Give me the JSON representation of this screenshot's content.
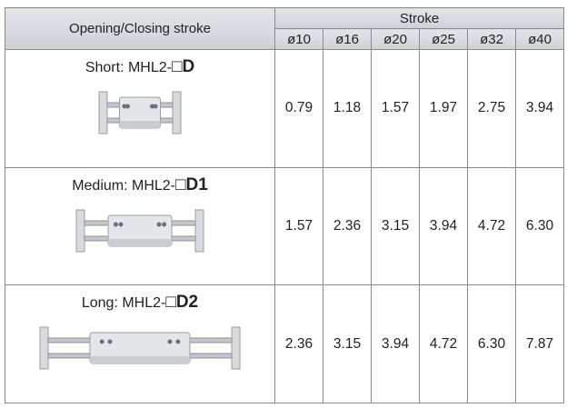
{
  "table": {
    "header": {
      "first": "Opening/Closing stroke",
      "group": "Stroke",
      "columns": [
        "ø10",
        "ø16",
        "ø20",
        "ø25",
        "ø32",
        "ø40"
      ]
    },
    "rows": [
      {
        "label": "Short: MHL2-",
        "model": "□D",
        "values": [
          "0.79",
          "1.18",
          "1.57",
          "1.97",
          "2.75",
          "3.94"
        ]
      },
      {
        "label": "Medium: MHL2-",
        "model": "□D1",
        "values": [
          "1.57",
          "2.36",
          "3.15",
          "3.94",
          "4.72",
          "6.30"
        ]
      },
      {
        "label": "Long: MHL2-",
        "model": "□D2",
        "values": [
          "2.36",
          "3.15",
          "3.94",
          "4.72",
          "6.30",
          "7.87"
        ]
      }
    ]
  }
}
